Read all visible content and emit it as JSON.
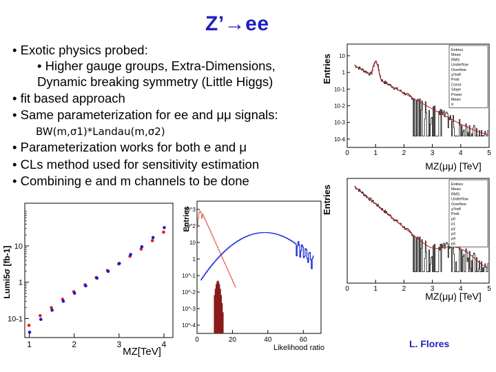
{
  "title": "Z’→ee",
  "bullets": {
    "b1": "• Exotic physics probed:",
    "b1_sub1": "• Higher gauge groups, Extra-Dimensions,",
    "b1_sub2": "Dynamic breaking symmetry (Little Higgs)",
    "b2": "• fit based approach",
    "b3": "• Same parameterization for ee and μμ signals:",
    "b3_formula": "BW(m,σ1)*Landau(m,σ2)",
    "b4": "• Parameterization works for both e and μ",
    "b5": "• CLs method used for sensitivity estimation",
    "b6": "• Combining e and m channels to be done"
  },
  "credit": "L. Flores",
  "chart_data": [
    {
      "type": "scatter",
      "title": "",
      "xlabel": "MZ[TeV]",
      "ylabel": "Lumi5σ [fb-1]",
      "yscale": "log",
      "xlim": [
        0.9,
        4.2
      ],
      "ylim": [
        0.03,
        150
      ],
      "x_ticks": [
        "1",
        "2",
        "3",
        "4"
      ],
      "y_ticks": [
        "10",
        "1",
        "10-1"
      ],
      "colors": {
        "red": "#e11b1b",
        "blue": "#1a1ad0"
      },
      "series": [
        {
          "name": "red",
          "x": [
            1.0,
            1.25,
            1.5,
            1.75,
            2.0,
            2.25,
            2.5,
            2.75,
            3.0,
            3.25,
            3.5,
            3.75,
            4.0
          ],
          "y": [
            0.065,
            0.12,
            0.2,
            0.34,
            0.55,
            0.85,
            1.35,
            2.1,
            3.2,
            5.2,
            8.2,
            14,
            24
          ]
        },
        {
          "name": "blue",
          "x": [
            1.0,
            1.25,
            1.5,
            1.75,
            2.0,
            2.25,
            2.5,
            2.75,
            3.0,
            3.25,
            3.5,
            3.75,
            4.0
          ],
          "y": [
            0.042,
            0.095,
            0.17,
            0.3,
            0.5,
            0.8,
            1.3,
            2.0,
            3.3,
            5.8,
            9.5,
            17,
            32
          ]
        }
      ]
    },
    {
      "type": "histogram",
      "xlabel": "Likelihood ratio",
      "ylabel": "Entries",
      "yscale": "log",
      "x_ticks": [
        "0",
        "20",
        "40",
        "60"
      ],
      "y_ticks": [
        "10^3",
        "10^2",
        "10",
        "1",
        "10^-1",
        "10^-2",
        "10^-3",
        "10^-4"
      ],
      "colors": {
        "background_fill": "#8b1a1a",
        "background_line": "#e06050",
        "signal_line": "#1a2ad8"
      },
      "series": [
        {
          "name": "background",
          "description": "narrow peak near 5-15, filled dark red near 10-15"
        },
        {
          "name": "signal",
          "description": "broad distribution peaking near 40"
        }
      ]
    },
    {
      "type": "histogram",
      "xlabel": "MZ(μμ) [TeV]",
      "ylabel": "Entries",
      "yscale": "log",
      "x_ticks": [
        "0",
        "1",
        "2",
        "3",
        "4",
        "5"
      ],
      "y_ticks": [
        "10",
        "1",
        "10-1",
        "10-2",
        "10-3",
        "10-4"
      ],
      "colors": {
        "data": "#111111",
        "fit": "#cc1111"
      },
      "stats": [
        "Entries",
        "Mean",
        "RMS",
        "Underflow",
        "Overflow",
        "χ²/ndf",
        "Prob",
        "Const",
        "Slope",
        "Power",
        "Mean",
        "σ"
      ],
      "peak_TeV": 1.0
    },
    {
      "type": "histogram",
      "xlabel": "MZ(μμ) [TeV]",
      "ylabel": "Entries",
      "yscale": "log",
      "x_ticks": [
        "0",
        "1",
        "2",
        "3",
        "4",
        "5"
      ],
      "colors": {
        "data": "#111111",
        "fit": "#cc1111"
      },
      "stats": [
        "Entries",
        "Mean",
        "RMS",
        "Underflow",
        "Overflow",
        "χ²/ndf",
        "Prob",
        "p0",
        "p1",
        "p2",
        "p3",
        "p4",
        "p5"
      ]
    }
  ]
}
